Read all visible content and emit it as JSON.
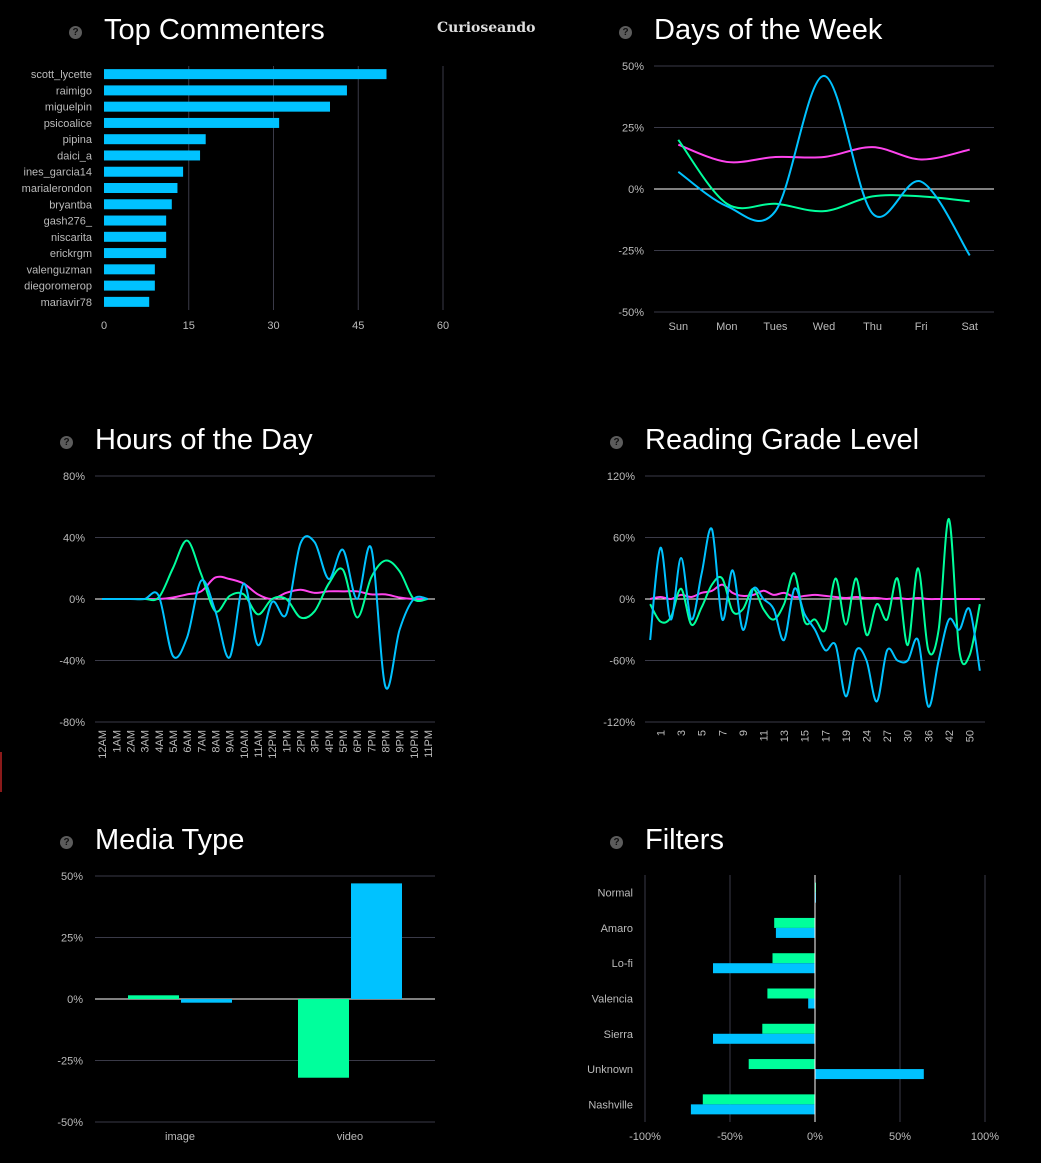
{
  "brand": "Curioseando",
  "help_glyph": "?",
  "colors": {
    "blue": "#00c2ff",
    "green": "#00ff9c",
    "magenta": "#ff44ee",
    "grid": "#3a3a48",
    "zero": "#ffffff",
    "tick": "#bbbbbb"
  },
  "panels": {
    "commenters": {
      "title": "Top Commenters"
    },
    "days": {
      "title": "Days of the Week"
    },
    "hours": {
      "title": "Hours of the Day"
    },
    "grade": {
      "title": "Reading Grade Level"
    },
    "media": {
      "title": "Media Type"
    },
    "filters": {
      "title": "Filters"
    }
  },
  "chart_data": [
    {
      "id": "commenters",
      "type": "bar",
      "orientation": "horizontal",
      "title": "Top Commenters",
      "categories": [
        "scott_lycette",
        "raimigo",
        "miguelpin",
        "psicoalice",
        "pipina",
        "daici_a",
        "ines_garcia14",
        "marialerondon",
        "bryantba",
        "gash276_",
        "niscarita",
        "erickrgm",
        "valenguzman",
        "diegoromerop",
        "mariavir78"
      ],
      "values": [
        50,
        43,
        40,
        31,
        18,
        17,
        14,
        13,
        12,
        11,
        11,
        11,
        9,
        9,
        8
      ],
      "xlim": [
        0,
        60
      ],
      "xticks": [
        0,
        15,
        30,
        45,
        60
      ],
      "tick_labels": [
        "0",
        "15",
        "30",
        "45",
        "60"
      ],
      "color": "#00c2ff"
    },
    {
      "id": "days",
      "type": "line",
      "title": "Days of the Week",
      "categories": [
        "Sun",
        "Mon",
        "Tues",
        "Wed",
        "Thu",
        "Fri",
        "Sat"
      ],
      "ylim": [
        -50,
        50
      ],
      "yticks": [
        50,
        25,
        0,
        -25,
        -50
      ],
      "ytick_labels": [
        "50%",
        "25%",
        "0%",
        "-25%",
        "-50%"
      ],
      "series": [
        {
          "color": "#ff44ee",
          "values": [
            18,
            11,
            13,
            13,
            17,
            12,
            16
          ]
        },
        {
          "color": "#00ff9c",
          "values": [
            20,
            -6,
            -6,
            -9,
            -3,
            -3,
            -5
          ]
        },
        {
          "color": "#00c2ff",
          "values": [
            7,
            -7,
            -9,
            46,
            -10,
            3,
            -27
          ]
        }
      ]
    },
    {
      "id": "hours",
      "type": "line",
      "title": "Hours of the Day",
      "categories": [
        "12AM",
        "1AM",
        "2AM",
        "3AM",
        "4AM",
        "5AM",
        "6AM",
        "7AM",
        "8AM",
        "9AM",
        "10AM",
        "11AM",
        "12PM",
        "1PM",
        "2PM",
        "3PM",
        "4PM",
        "5PM",
        "6PM",
        "7PM",
        "8PM",
        "9PM",
        "10PM",
        "11PM"
      ],
      "ylim": [
        -80,
        80
      ],
      "yticks": [
        80,
        40,
        0,
        -40,
        -80
      ],
      "ytick_labels": [
        "80%",
        "40%",
        "0%",
        "-40%",
        "-80%"
      ],
      "series": [
        {
          "color": "#ff44ee",
          "values": [
            0,
            0,
            0,
            0,
            0,
            1,
            3,
            5,
            14,
            13,
            10,
            3,
            0,
            4,
            6,
            4,
            5,
            5,
            5,
            3,
            3,
            1,
            0,
            0
          ]
        },
        {
          "color": "#00ff9c",
          "values": [
            0,
            0,
            0,
            0,
            1,
            20,
            38,
            16,
            -8,
            2,
            3,
            -10,
            0,
            0,
            -12,
            -8,
            10,
            19,
            -12,
            14,
            25,
            18,
            0,
            0
          ]
        },
        {
          "color": "#00c2ff",
          "values": [
            0,
            0,
            0,
            0,
            2,
            -37,
            -25,
            12,
            -8,
            -38,
            10,
            -30,
            -2,
            -10,
            36,
            37,
            13,
            32,
            0,
            33,
            -57,
            -20,
            0,
            0
          ]
        }
      ]
    },
    {
      "id": "grade",
      "type": "line",
      "title": "Reading Grade Level",
      "categories": [
        "",
        "1",
        "",
        "3",
        "",
        "5",
        "",
        "7",
        "",
        "9",
        "",
        "11",
        "",
        "13",
        "",
        "15",
        "",
        "17",
        "",
        "19",
        "",
        "24",
        "",
        "27",
        "",
        "30",
        "",
        "36",
        "",
        "42",
        "",
        "50",
        ""
      ],
      "tick_labels": [
        "1",
        "3",
        "5",
        "7",
        "9",
        "11",
        "13",
        "15",
        "17",
        "19",
        "24",
        "27",
        "30",
        "36",
        "42",
        "50"
      ],
      "ylim": [
        -120,
        120
      ],
      "yticks": [
        120,
        60,
        0,
        -60,
        -120
      ],
      "ytick_labels": [
        "120%",
        "60%",
        "0%",
        "-60%",
        "-120%"
      ],
      "series": [
        {
          "color": "#ff44ee",
          "values": [
            0,
            2,
            0,
            4,
            2,
            6,
            8,
            14,
            6,
            3,
            4,
            8,
            4,
            6,
            2,
            3,
            4,
            3,
            2,
            1,
            2,
            1,
            1,
            0,
            1,
            0,
            1,
            0,
            0,
            0,
            0,
            0,
            0
          ]
        },
        {
          "color": "#00ff9c",
          "values": [
            -5,
            -22,
            -18,
            10,
            -25,
            -8,
            14,
            20,
            -12,
            -10,
            10,
            -10,
            -20,
            -5,
            25,
            -22,
            -20,
            -30,
            20,
            -25,
            20,
            -35,
            -5,
            -20,
            20,
            -45,
            30,
            -50,
            -30,
            78,
            -50,
            -55,
            -5
          ]
        },
        {
          "color": "#00c2ff",
          "values": [
            -40,
            50,
            -20,
            40,
            -20,
            25,
            68,
            -20,
            28,
            -30,
            10,
            0,
            -10,
            -40,
            10,
            -15,
            -30,
            -50,
            -45,
            -95,
            -50,
            -60,
            -100,
            -50,
            -60,
            -60,
            -40,
            -105,
            -60,
            -20,
            -30,
            -10,
            -70
          ]
        }
      ]
    },
    {
      "id": "media",
      "type": "bar",
      "title": "Media Type",
      "categories": [
        "image",
        "video"
      ],
      "ylim": [
        -50,
        50
      ],
      "yticks": [
        50,
        25,
        0,
        -25,
        -50
      ],
      "ytick_labels": [
        "50%",
        "25%",
        "0%",
        "-25%",
        "-50%"
      ],
      "series": [
        {
          "color": "#00ff9c",
          "values": [
            1.5,
            -32
          ]
        },
        {
          "color": "#00c2ff",
          "values": [
            -1.5,
            47
          ]
        }
      ]
    },
    {
      "id": "filters",
      "type": "bar",
      "orientation": "horizontal",
      "title": "Filters",
      "categories": [
        "Normal",
        "Amaro",
        "Lo-fi",
        "Valencia",
        "Sierra",
        "Unknown",
        "Nashville"
      ],
      "xlim": [
        -100,
        100
      ],
      "xticks": [
        -100,
        -50,
        0,
        50,
        100
      ],
      "xtick_labels": [
        "-100%",
        "-50%",
        "0%",
        "50%",
        "100%"
      ],
      "series": [
        {
          "color": "#00ff9c",
          "values": [
            0.5,
            -24,
            -25,
            -28,
            -31,
            -39,
            -66
          ]
        },
        {
          "color": "#00c2ff",
          "values": [
            0.5,
            -23,
            -60,
            -4,
            -60,
            64,
            -73
          ]
        }
      ]
    }
  ]
}
